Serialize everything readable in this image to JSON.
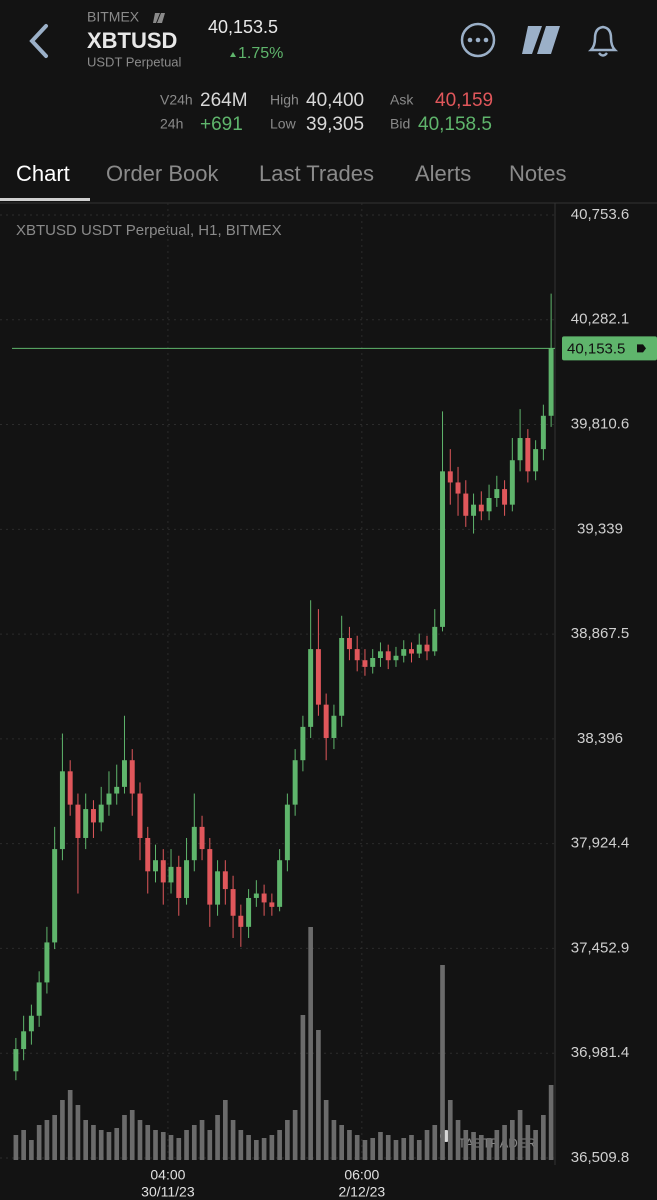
{
  "header": {
    "exchange": "BITMEX",
    "symbol": "XBTUSD",
    "contract": "USDT Perpetual",
    "price": "40,153.5",
    "change": "1.75%"
  },
  "stats": [
    {
      "label": "V24h",
      "value": "264M"
    },
    {
      "label": "High",
      "value": "40,400"
    },
    {
      "label": "Ask",
      "value": "40,159"
    },
    {
      "label": "24h",
      "value": "+691"
    },
    {
      "label": "Low",
      "value": "39,305"
    },
    {
      "label": "Bid",
      "value": "40,158.5"
    }
  ],
  "tabs": [
    "Chart",
    "Order Book",
    "Last Trades",
    "Alerts",
    "Notes"
  ],
  "chart_data": {
    "type": "candlestick",
    "title": "XBTUSD USDT Perpetual, H1, BITMEX",
    "watermark": "TABTRADER",
    "up_color": "#5fb56c",
    "down_color": "#e0575b",
    "volume_color": "#6b6b6b",
    "grid": true,
    "open": [
      36900,
      37000,
      37080,
      37150,
      37300,
      37480,
      37900,
      38250,
      38100,
      37950,
      38080,
      38020,
      38100,
      38150,
      38180,
      38300,
      38150,
      37950,
      37800,
      37850,
      37750,
      37820,
      37680,
      37850,
      38000,
      37900,
      37650,
      37800,
      37720,
      37600,
      37550,
      37680,
      37700,
      37660,
      37640,
      37850,
      38100,
      38300,
      38450,
      38800,
      38550,
      38400,
      38500,
      38850,
      38800,
      38750,
      38720,
      38760,
      38790,
      38750,
      38770,
      38800,
      38780,
      38820,
      38790,
      38900,
      39600,
      39550,
      39500,
      39400,
      39450,
      39420,
      39480,
      39520,
      39450,
      39650,
      39750,
      39600,
      39700,
      39850
    ],
    "high": [
      37050,
      37150,
      37200,
      37350,
      37550,
      38000,
      38420,
      38300,
      38150,
      38150,
      38120,
      38180,
      38250,
      38280,
      38500,
      38350,
      38200,
      38000,
      37920,
      37900,
      37900,
      37870,
      37950,
      38150,
      38050,
      37950,
      37850,
      37850,
      37780,
      37650,
      37720,
      37760,
      37740,
      37700,
      37900,
      38150,
      38350,
      38500,
      39020,
      38980,
      38600,
      38550,
      38950,
      38900,
      38860,
      38800,
      38800,
      38830,
      38820,
      38810,
      38840,
      38830,
      38870,
      38860,
      38980,
      39870,
      39700,
      39620,
      39560,
      39500,
      39510,
      39540,
      39580,
      39560,
      39750,
      39880,
      39790,
      39740,
      39900,
      40400
    ],
    "low": [
      36860,
      36950,
      37020,
      37100,
      37250,
      37450,
      37850,
      38050,
      37700,
      37900,
      37950,
      37980,
      38050,
      38100,
      38150,
      38050,
      37850,
      37700,
      37750,
      37650,
      37700,
      37600,
      37650,
      37800,
      37850,
      37550,
      37600,
      37650,
      37500,
      37460,
      37500,
      37640,
      37600,
      37600,
      37620,
      37800,
      38050,
      38250,
      38400,
      38500,
      38300,
      38350,
      38450,
      38750,
      38700,
      38680,
      38690,
      38720,
      38710,
      38720,
      38740,
      38740,
      38760,
      38750,
      38770,
      38880,
      39450,
      39400,
      39350,
      39320,
      39380,
      39380,
      39440,
      39400,
      39420,
      39600,
      39550,
      39560,
      39650,
      39800
    ],
    "close": [
      37000,
      37080,
      37150,
      37300,
      37480,
      37900,
      38250,
      38100,
      37950,
      38080,
      38020,
      38100,
      38150,
      38180,
      38300,
      38150,
      37950,
      37800,
      37850,
      37750,
      37820,
      37680,
      37850,
      38000,
      37900,
      37650,
      37800,
      37720,
      37600,
      37550,
      37680,
      37700,
      37660,
      37640,
      37850,
      38100,
      38300,
      38450,
      38800,
      38550,
      38400,
      38500,
      38850,
      38800,
      38750,
      38720,
      38760,
      38790,
      38750,
      38770,
      38800,
      38780,
      38820,
      38790,
      38900,
      39600,
      39550,
      39500,
      39400,
      39450,
      39420,
      39480,
      39520,
      39450,
      39650,
      39750,
      39600,
      39700,
      39850,
      40153.5
    ],
    "volume": [
      25,
      30,
      20,
      35,
      40,
      45,
      60,
      70,
      55,
      40,
      35,
      30,
      28,
      32,
      45,
      50,
      40,
      35,
      30,
      28,
      25,
      22,
      30,
      35,
      40,
      30,
      45,
      60,
      40,
      30,
      25,
      20,
      22,
      25,
      30,
      40,
      50,
      145,
      233,
      130,
      60,
      40,
      35,
      30,
      25,
      20,
      22,
      28,
      25,
      20,
      22,
      25,
      20,
      30,
      35,
      195,
      60,
      40,
      30,
      28,
      25,
      22,
      30,
      35,
      40,
      50,
      35,
      30,
      45,
      75
    ],
    "last_price": 40153.5,
    "last_price_label": "40,153.5",
    "ylim": [
      36509.8,
      40753.6
    ],
    "yticks": [
      {
        "value": 40753.6,
        "label": "40,753.6"
      },
      {
        "value": 40282.1,
        "label": "40,282.1"
      },
      {
        "value": 39810.6,
        "label": "39,810.6"
      },
      {
        "value": 39339,
        "label": "39,339"
      },
      {
        "value": 38867.5,
        "label": "38,867.5"
      },
      {
        "value": 38396,
        "label": "38,396"
      },
      {
        "value": 37924.4,
        "label": "37,924.4"
      },
      {
        "value": 37452.9,
        "label": "37,452.9"
      },
      {
        "value": 36981.4,
        "label": "36,981.4"
      },
      {
        "value": 36509.8,
        "label": "36,509.8"
      }
    ],
    "xticks": [
      {
        "value": 19.6,
        "label": [
          "04:00",
          "30/11/23"
        ]
      },
      {
        "value": 44.6,
        "label": [
          "06:00",
          "2/12/23"
        ]
      }
    ]
  }
}
